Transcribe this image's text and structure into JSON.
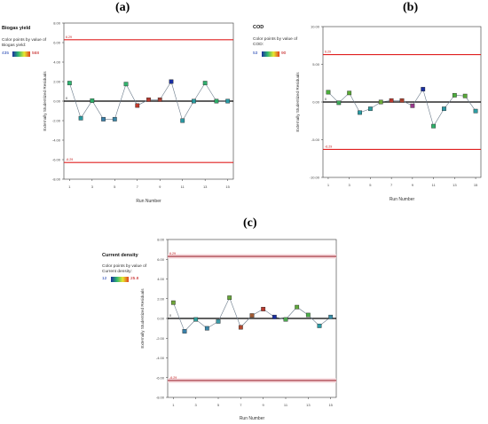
{
  "panels": {
    "a": {
      "letter": "(a)",
      "response_title": "Biogas yield",
      "color_label_1": "Color points by value of",
      "color_label_2": "Biogas yield:",
      "color_min": "435",
      "color_max": "568"
    },
    "b": {
      "letter": "(b)",
      "response_title": "COD",
      "color_label_1": "Color points by value of",
      "color_label_2": "COD:",
      "color_min": "53",
      "color_max": "90"
    },
    "c": {
      "letter": "(c)",
      "response_title": "Current density",
      "color_label_1": "Color points by value of",
      "color_label_2": "Current density:",
      "color_min": "12",
      "color_max": "25.8"
    }
  },
  "chart_data": [
    {
      "id": "a",
      "type": "line",
      "xlabel": "Run Number",
      "ylabel": "Externally Studentized Residuals",
      "xlim": [
        0.5,
        15.5
      ],
      "ylim": [
        -8,
        8
      ],
      "x_ticks": [
        1,
        3,
        5,
        7,
        9,
        11,
        13,
        15
      ],
      "x_tick_labels": [
        "1",
        "3",
        "5",
        "7",
        "9",
        "11",
        "13",
        "15"
      ],
      "y_ticks": [
        8,
        6,
        4,
        2,
        0,
        -2,
        -4,
        -6,
        -8
      ],
      "y_tick_labels": [
        "8.00",
        "6.00",
        "4.00",
        "2.00",
        "0.00",
        "-2.00",
        "-4.00",
        "-6.00",
        "-8.00"
      ],
      "limits": [
        6.29,
        -6.29
      ],
      "limit_labels": [
        "6.29",
        "-6.29"
      ],
      "zero_label": "0",
      "x": [
        1,
        2,
        3,
        4,
        5,
        6,
        7,
        8,
        9,
        10,
        11,
        12,
        13,
        14,
        15
      ],
      "values": [
        1.85,
        -1.75,
        0.05,
        -1.85,
        -1.85,
        1.75,
        -0.45,
        0.15,
        0.15,
        2.0,
        -2.0,
        0.0,
        1.85,
        0.0,
        0.0
      ],
      "point_colors": [
        "#2fb873",
        "#2a9aa0",
        "#2fae6a",
        "#3a7ea8",
        "#3a86a8",
        "#34b36e",
        "#c0392b",
        "#b83a2f",
        "#a84035",
        "#1a2fa0",
        "#2a98a2",
        "#2a9a9e",
        "#33b070",
        "#2eaa68",
        "#2a9aa4"
      ]
    },
    {
      "id": "b",
      "type": "line",
      "xlabel": "Run Number",
      "ylabel": "Externally Studentized Residuals",
      "xlim": [
        0.5,
        15.5
      ],
      "ylim": [
        -10,
        10
      ],
      "x_ticks": [
        1,
        3,
        5,
        7,
        9,
        11,
        13,
        15
      ],
      "x_tick_labels": [
        "1",
        "3",
        "5",
        "7",
        "9",
        "11",
        "13",
        "15"
      ],
      "y_ticks": [
        10,
        5,
        0,
        -5,
        -10
      ],
      "y_tick_labels": [
        "10.00",
        "5.00",
        "0.00",
        "-5.00",
        "-10.00"
      ],
      "limits": [
        6.29,
        -6.29
      ],
      "limit_labels": [
        "6.29",
        "-6.29"
      ],
      "zero_label": "0",
      "x": [
        1,
        2,
        3,
        4,
        5,
        6,
        7,
        8,
        9,
        10,
        11,
        12,
        13,
        14,
        15
      ],
      "values": [
        1.3,
        -0.1,
        1.2,
        -1.4,
        -0.9,
        0.0,
        0.2,
        0.2,
        -0.5,
        1.7,
        -3.2,
        -0.9,
        0.9,
        0.8,
        -1.2
      ],
      "point_colors": [
        "#4cae3c",
        "#3fa85a",
        "#5aaa36",
        "#2a9aa2",
        "#2e9ea0",
        "#6aa83a",
        "#b8382e",
        "#a8402e",
        "#9a3a8e",
        "#1a2fa0",
        "#2fb06a",
        "#2e98a4",
        "#4cae3c",
        "#58aa38",
        "#2e9ea4"
      ]
    },
    {
      "id": "c",
      "type": "line",
      "xlabel": "Run Number",
      "ylabel": "Externally Studentized Residuals",
      "xlim": [
        0.5,
        15.5
      ],
      "ylim": [
        -8,
        8
      ],
      "x_ticks": [
        1,
        3,
        5,
        7,
        9,
        11,
        13,
        15
      ],
      "x_tick_labels": [
        "1",
        "3",
        "5",
        "7",
        "9",
        "11",
        "13",
        "15"
      ],
      "y_ticks": [
        8,
        6,
        4,
        2,
        0,
        -2,
        -4,
        -6,
        -8
      ],
      "y_tick_labels": [
        "8.00",
        "6.00",
        "4.00",
        "2.00",
        "0.00",
        "-2.00",
        "-4.00",
        "-6.00",
        "-8.00"
      ],
      "limits": [
        6.29,
        -6.29
      ],
      "limit_labels": [
        "6.29",
        "-6.29"
      ],
      "zero_label": "0",
      "x": [
        1,
        2,
        3,
        4,
        5,
        6,
        7,
        8,
        9,
        10,
        11,
        12,
        13,
        14,
        15
      ],
      "values": [
        1.6,
        -1.3,
        -0.1,
        -1.0,
        -0.3,
        2.1,
        -0.9,
        0.3,
        0.95,
        0.15,
        -0.1,
        1.15,
        0.35,
        -0.75,
        0.15
      ],
      "point_colors": [
        "#6fa53a",
        "#3a80a8",
        "#2f9e9a",
        "#3a86a8",
        "#3a9aa8",
        "#66a63a",
        "#b0482e",
        "#a05a32",
        "#b83a2e",
        "#1a2fa0",
        "#4ca850",
        "#60a83c",
        "#4aae48",
        "#2a9aa4",
        "#3a8ea8"
      ]
    }
  ]
}
